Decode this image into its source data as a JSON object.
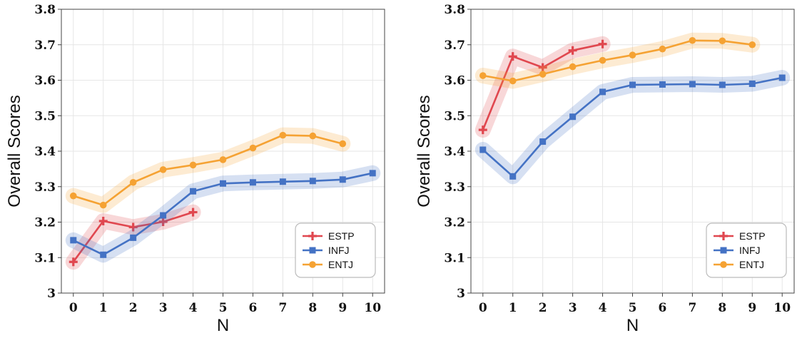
{
  "colors": {
    "ESTP": "#e0474f",
    "INFJ": "#4472c4",
    "ENTJ": "#f5a233",
    "grid": "#e6e6e6",
    "frame": "#444444",
    "legend_border": "#bbbbbb"
  },
  "chart_data": [
    {
      "type": "line",
      "title": "",
      "xlabel": "N",
      "ylabel": "Overall  Scores",
      "xlim": [
        -0.4,
        10.4
      ],
      "ylim": [
        3.0,
        3.8
      ],
      "x_ticks": [
        "0",
        "1",
        "2",
        "3",
        "4",
        "5",
        "6",
        "7",
        "8",
        "9",
        "10"
      ],
      "y_ticks": [
        "3",
        "3.1",
        "3.2",
        "3.3",
        "3.4",
        "3.5",
        "3.6",
        "3.7",
        "3.8"
      ],
      "grid": true,
      "legend_position": "bottom-right",
      "series": [
        {
          "name": "ESTP",
          "marker": "plus",
          "x": [
            0,
            1,
            2,
            3,
            4
          ],
          "values": [
            3.088,
            3.203,
            3.186,
            3.201,
            3.228
          ]
        },
        {
          "name": "INFJ",
          "marker": "square",
          "x": [
            0,
            1,
            2,
            3,
            4,
            5,
            6,
            7,
            8,
            9,
            10
          ],
          "values": [
            3.149,
            3.108,
            3.156,
            3.219,
            3.287,
            3.309,
            3.312,
            3.314,
            3.316,
            3.32,
            3.338
          ]
        },
        {
          "name": "ENTJ",
          "marker": "circle",
          "x": [
            0,
            1,
            2,
            3,
            4,
            5,
            6,
            7,
            8,
            9
          ],
          "values": [
            3.274,
            3.248,
            3.312,
            3.348,
            3.361,
            3.376,
            3.409,
            3.445,
            3.443,
            3.421
          ]
        }
      ]
    },
    {
      "type": "line",
      "title": "",
      "xlabel": "N",
      "ylabel": "Overall  Scores",
      "xlim": [
        -0.4,
        10.4
      ],
      "ylim": [
        3.0,
        3.8
      ],
      "x_ticks": [
        "0",
        "1",
        "2",
        "3",
        "4",
        "5",
        "6",
        "7",
        "8",
        "9",
        "10"
      ],
      "y_ticks": [
        "3",
        "3.1",
        "3.2",
        "3.3",
        "3.4",
        "3.5",
        "3.6",
        "3.7",
        "3.8"
      ],
      "grid": true,
      "legend_position": "bottom-right",
      "series": [
        {
          "name": "ESTP",
          "marker": "plus",
          "x": [
            0,
            1,
            2,
            3,
            4
          ],
          "values": [
            3.46,
            3.667,
            3.636,
            3.684,
            3.702
          ]
        },
        {
          "name": "INFJ",
          "marker": "square",
          "x": [
            0,
            1,
            2,
            3,
            4,
            5,
            6,
            7,
            8,
            9,
            10
          ],
          "values": [
            3.404,
            3.329,
            3.427,
            3.497,
            3.567,
            3.587,
            3.588,
            3.589,
            3.587,
            3.59,
            3.607
          ]
        },
        {
          "name": "ENTJ",
          "marker": "circle",
          "x": [
            0,
            1,
            2,
            3,
            4,
            5,
            6,
            7,
            8,
            9
          ],
          "values": [
            3.613,
            3.598,
            3.617,
            3.638,
            3.656,
            3.671,
            3.688,
            3.712,
            3.711,
            3.7
          ]
        }
      ]
    }
  ]
}
